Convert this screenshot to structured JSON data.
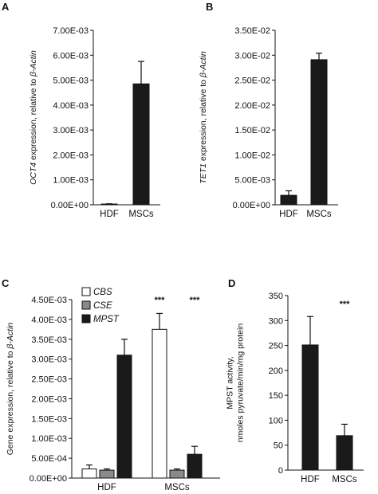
{
  "chart_data": [
    {
      "panel": "A",
      "type": "bar",
      "ylabel": {
        "gene": "OCT4",
        "rest": " expression, relative to ",
        "ref": "β-Actin"
      },
      "yticks": [
        "0.00E+00",
        "1.00E-03",
        "2.00E-03",
        "3.00E-03",
        "4.00E-03",
        "5.00E-03",
        "6.00E-03",
        "7.00E-03"
      ],
      "ylim": [
        0,
        0.007
      ],
      "categories": [
        "HDF",
        "MSCs"
      ],
      "series": [
        {
          "fill": "#1a1a1a",
          "values": [
            3e-05,
            0.00485
          ],
          "errors": [
            1e-05,
            0.0009
          ]
        }
      ],
      "significance": []
    },
    {
      "panel": "B",
      "type": "bar",
      "ylabel": {
        "gene": "TET1",
        "rest": " expression, relative to ",
        "ref": "β-Actin"
      },
      "yticks": [
        "0.00E+00",
        "5.00E-03",
        "1.00E-02",
        "1.50E-02",
        "2.00E-02",
        "2.50E-02",
        "3.00E-02",
        "3.50E-02"
      ],
      "ylim": [
        0,
        0.035
      ],
      "categories": [
        "HDF",
        "MSCs"
      ],
      "series": [
        {
          "fill": "#1a1a1a",
          "values": [
            0.0019,
            0.0291
          ],
          "errors": [
            0.0009,
            0.0013
          ]
        }
      ],
      "significance": []
    },
    {
      "panel": "C",
      "type": "bar",
      "ylabel": {
        "gene": "",
        "rest": "Gene expression, relative to ",
        "ref": "β-Actin"
      },
      "yticks": [
        "0.00E+00",
        "5.00E-04",
        "1.00E-03",
        "1.50E-03",
        "2.00E-03",
        "2.50E-03",
        "3.00E-03",
        "3.50E-03",
        "4.00E-03",
        "4.50E-03"
      ],
      "ylim": [
        0,
        0.0045
      ],
      "categories": [
        "HDF",
        "MSCs"
      ],
      "series": [
        {
          "name": "CBS",
          "fill": "#ffffff",
          "values": [
            0.00023,
            0.00375
          ],
          "errors": [
            0.0001,
            0.0004
          ]
        },
        {
          "name": "CSE",
          "fill": "#8a8a8a",
          "values": [
            0.0002,
            0.0002
          ],
          "errors": [
            3e-05,
            3e-05
          ]
        },
        {
          "name": "MPST",
          "fill": "#1a1a1a",
          "values": [
            0.0031,
            0.0006
          ],
          "errors": [
            0.0004,
            0.0002
          ]
        }
      ],
      "significance": [
        {
          "category": 1,
          "series": 0,
          "label": "***"
        },
        {
          "category": 1,
          "series": 2,
          "label": "***"
        }
      ]
    },
    {
      "panel": "D",
      "type": "bar",
      "ylabel_lines": [
        "MPST activity,",
        "nmoles pyruvate/min/mg protein"
      ],
      "yticks": [
        "0",
        "50",
        "100",
        "150",
        "200",
        "250",
        "300",
        "350"
      ],
      "ylim": [
        0,
        350
      ],
      "categories": [
        "HDF",
        "MSCs"
      ],
      "series": [
        {
          "fill": "#1a1a1a",
          "values": [
            251,
            69
          ],
          "errors": [
            57,
            23
          ]
        }
      ],
      "significance": [
        {
          "category": 1,
          "series": 0,
          "label": "***"
        }
      ]
    }
  ]
}
